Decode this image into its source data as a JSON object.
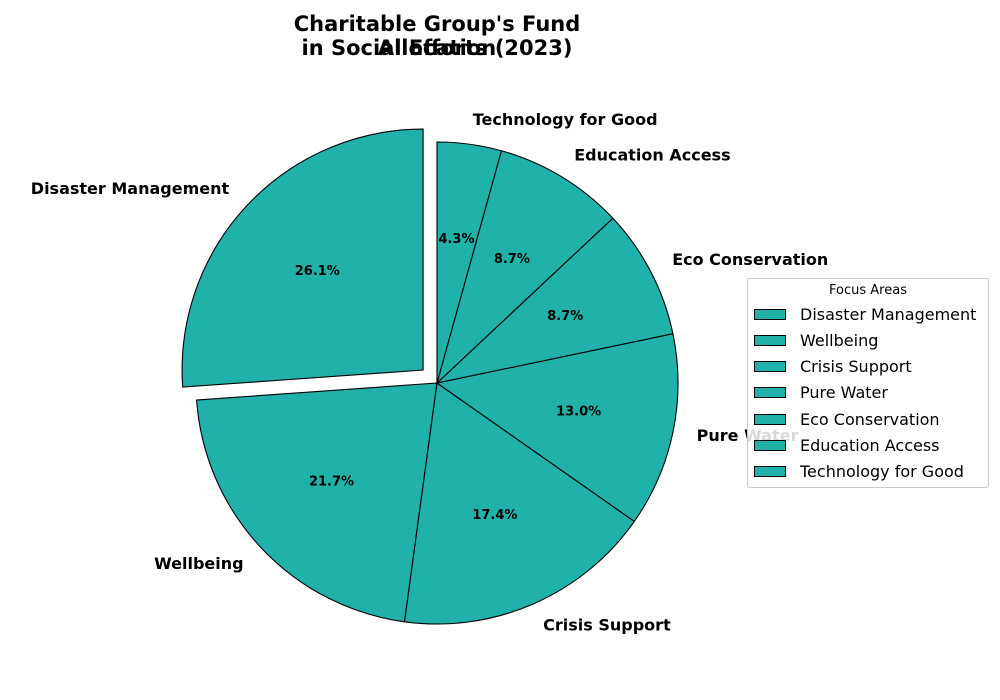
{
  "chart_data": {
    "type": "pie",
    "title_lines": [
      "Charitable Group's Fund Allocation",
      "in Social Efforts (2023)"
    ],
    "slices": [
      {
        "label": "Disaster Management",
        "value": 26.1,
        "pct_label": "26.1%",
        "exploded": true
      },
      {
        "label": "Wellbeing",
        "value": 21.7,
        "pct_label": "21.7%",
        "exploded": false
      },
      {
        "label": "Crisis Support",
        "value": 17.4,
        "pct_label": "17.4%",
        "exploded": false
      },
      {
        "label": "Pure Water",
        "value": 13.0,
        "pct_label": "13.0%",
        "exploded": false
      },
      {
        "label": "Eco Conservation",
        "value": 8.7,
        "pct_label": "8.7%",
        "exploded": false
      },
      {
        "label": "Education Access",
        "value": 8.7,
        "pct_label": "8.7%",
        "exploded": false
      },
      {
        "label": "Technology for Good",
        "value": 4.3,
        "pct_label": "4.3%",
        "exploded": false
      }
    ],
    "slice_color": "#20b2aa",
    "edge_color": "#000000",
    "direction": "counterclockwise",
    "start_angle_deg": 90,
    "legend": {
      "title": "Focus Areas",
      "placement": "center-right",
      "entries": [
        "Disaster Management",
        "Wellbeing",
        "Crisis Support",
        "Pure Water",
        "Eco Conservation",
        "Education Access",
        "Technology for Good"
      ]
    }
  }
}
